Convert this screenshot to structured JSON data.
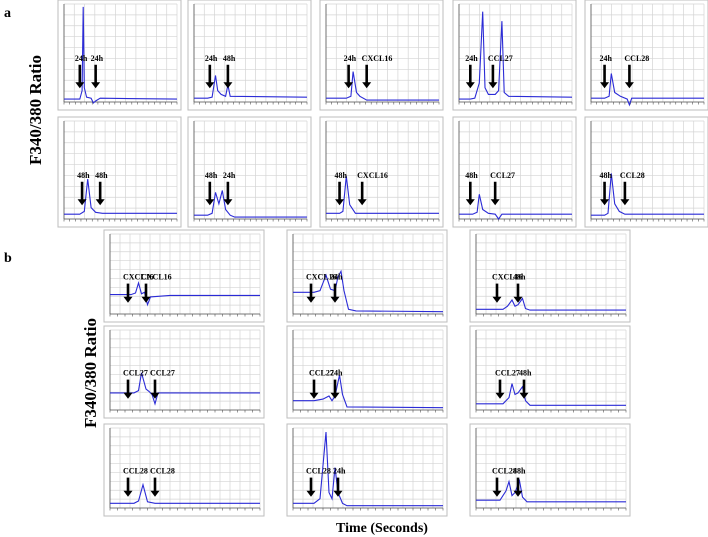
{
  "panel_a_letter": "a",
  "panel_b_letter": "b",
  "ylabel": "F340/380 Ratio",
  "xlabel": "Time (Seconds)",
  "chart_data": {
    "type": "line",
    "ylabel": "F340/380 Ratio",
    "xlabel": "Time (Seconds)",
    "xlim": [
      0,
      100
    ],
    "ylim": [
      0,
      100
    ],
    "grid": true,
    "line_color": "#2b2bd6",
    "panels": [
      {
        "panel": "a",
        "row": 1,
        "col": 1,
        "labels": [
          "24h",
          "24h"
        ],
        "arrows": [
          14,
          28
        ],
        "series": [
          [
            0,
            3
          ],
          [
            10,
            3
          ],
          [
            14,
            3
          ],
          [
            16,
            12
          ],
          [
            17,
            100
          ],
          [
            18,
            15
          ],
          [
            20,
            5
          ],
          [
            24,
            4
          ],
          [
            26,
            -1
          ],
          [
            28,
            1
          ],
          [
            32,
            4
          ],
          [
            100,
            3
          ]
        ]
      },
      {
        "panel": "a",
        "row": 1,
        "col": 2,
        "labels": [
          "24h",
          "48h"
        ],
        "arrows": [
          14,
          30
        ],
        "series": [
          [
            0,
            4
          ],
          [
            12,
            4
          ],
          [
            16,
            5
          ],
          [
            19,
            28
          ],
          [
            21,
            12
          ],
          [
            24,
            8
          ],
          [
            28,
            6
          ],
          [
            30,
            18
          ],
          [
            32,
            6
          ],
          [
            100,
            5
          ]
        ]
      },
      {
        "panel": "a",
        "row": 1,
        "col": 3,
        "labels": [
          "24h",
          "CXCL16"
        ],
        "arrows": [
          20,
          36
        ],
        "series": [
          [
            0,
            4
          ],
          [
            18,
            4
          ],
          [
            22,
            6
          ],
          [
            24,
            32
          ],
          [
            27,
            10
          ],
          [
            30,
            6
          ],
          [
            36,
            2
          ],
          [
            100,
            2
          ]
        ]
      },
      {
        "panel": "a",
        "row": 1,
        "col": 4,
        "labels": [
          "24h",
          "CCL27"
        ],
        "arrows": [
          10,
          30
        ],
        "series": [
          [
            0,
            3
          ],
          [
            10,
            3
          ],
          [
            14,
            4
          ],
          [
            18,
            20
          ],
          [
            21,
            95
          ],
          [
            23,
            15
          ],
          [
            26,
            8
          ],
          [
            32,
            8
          ],
          [
            35,
            12
          ],
          [
            38,
            85
          ],
          [
            40,
            10
          ],
          [
            44,
            6
          ],
          [
            100,
            5
          ]
        ]
      },
      {
        "panel": "a",
        "row": 1,
        "col": 5,
        "labels": [
          "24h",
          "CCL28"
        ],
        "arrows": [
          12,
          34
        ],
        "series": [
          [
            0,
            4
          ],
          [
            12,
            4
          ],
          [
            16,
            6
          ],
          [
            18,
            30
          ],
          [
            21,
            10
          ],
          [
            26,
            6
          ],
          [
            32,
            3
          ],
          [
            34,
            -3
          ],
          [
            36,
            4
          ],
          [
            100,
            4
          ]
        ]
      },
      {
        "panel": "a",
        "row": 2,
        "col": 1,
        "labels": [
          "48h",
          "48h"
        ],
        "arrows": [
          16,
          32
        ],
        "series": [
          [
            0,
            5
          ],
          [
            14,
            5
          ],
          [
            18,
            8
          ],
          [
            21,
            42
          ],
          [
            24,
            12
          ],
          [
            28,
            7
          ],
          [
            34,
            6
          ],
          [
            100,
            6
          ]
        ]
      },
      {
        "panel": "a",
        "row": 2,
        "col": 2,
        "labels": [
          "48h",
          "24h"
        ],
        "arrows": [
          14,
          30
        ],
        "series": [
          [
            0,
            4
          ],
          [
            12,
            4
          ],
          [
            16,
            6
          ],
          [
            19,
            28
          ],
          [
            22,
            16
          ],
          [
            25,
            30
          ],
          [
            28,
            10
          ],
          [
            32,
            4
          ],
          [
            36,
            2
          ],
          [
            100,
            2
          ]
        ]
      },
      {
        "panel": "a",
        "row": 2,
        "col": 3,
        "labels": [
          "48h",
          "CXCL16"
        ],
        "arrows": [
          12,
          32
        ],
        "series": [
          [
            0,
            6
          ],
          [
            12,
            6
          ],
          [
            15,
            8
          ],
          [
            18,
            45
          ],
          [
            21,
            15
          ],
          [
            26,
            6
          ],
          [
            100,
            6
          ]
        ]
      },
      {
        "panel": "a",
        "row": 2,
        "col": 4,
        "labels": [
          "48h",
          "CCL27"
        ],
        "arrows": [
          10,
          32
        ],
        "series": [
          [
            0,
            5
          ],
          [
            12,
            5
          ],
          [
            16,
            7
          ],
          [
            18,
            26
          ],
          [
            21,
            10
          ],
          [
            26,
            6
          ],
          [
            32,
            5
          ],
          [
            35,
            0
          ],
          [
            38,
            5
          ],
          [
            100,
            5
          ]
        ]
      },
      {
        "panel": "a",
        "row": 2,
        "col": 5,
        "labels": [
          "48h",
          "CCL28"
        ],
        "arrows": [
          12,
          30
        ],
        "series": [
          [
            0,
            4
          ],
          [
            12,
            4
          ],
          [
            15,
            6
          ],
          [
            18,
            48
          ],
          [
            21,
            16
          ],
          [
            25,
            8
          ],
          [
            30,
            5
          ],
          [
            100,
            5
          ]
        ]
      },
      {
        "panel": "b",
        "row": 1,
        "col": 1,
        "labels": [
          "CXCL16",
          "CXCL16"
        ],
        "arrows": [
          12,
          24
        ],
        "series": [
          [
            0,
            25
          ],
          [
            14,
            25
          ],
          [
            17,
            27
          ],
          [
            19,
            40
          ],
          [
            21,
            26
          ],
          [
            23,
            28
          ],
          [
            25,
            12
          ],
          [
            27,
            22
          ],
          [
            40,
            24
          ],
          [
            100,
            24
          ]
        ]
      },
      {
        "panel": "b",
        "row": 1,
        "col": 2,
        "labels": [
          "CXCL16",
          "24h"
        ],
        "arrows": [
          12,
          28
        ],
        "series": [
          [
            0,
            28
          ],
          [
            14,
            28
          ],
          [
            18,
            30
          ],
          [
            22,
            50
          ],
          [
            25,
            32
          ],
          [
            28,
            30
          ],
          [
            30,
            48
          ],
          [
            32,
            55
          ],
          [
            34,
            30
          ],
          [
            37,
            6
          ],
          [
            42,
            4
          ],
          [
            100,
            3
          ]
        ]
      },
      {
        "panel": "b",
        "row": 1,
        "col": 3,
        "labels": [
          "CXCL16",
          "48h"
        ],
        "arrows": [
          14,
          28
        ],
        "series": [
          [
            0,
            6
          ],
          [
            18,
            6
          ],
          [
            21,
            10
          ],
          [
            24,
            18
          ],
          [
            26,
            10
          ],
          [
            28,
            12
          ],
          [
            31,
            20
          ],
          [
            33,
            7
          ],
          [
            36,
            5
          ],
          [
            100,
            5
          ]
        ]
      },
      {
        "panel": "b",
        "row": 2,
        "col": 1,
        "labels": [
          "CCL27",
          "CCL27"
        ],
        "arrows": [
          12,
          30
        ],
        "series": [
          [
            0,
            22
          ],
          [
            16,
            22
          ],
          [
            19,
            25
          ],
          [
            21,
            48
          ],
          [
            24,
            27
          ],
          [
            26,
            24
          ],
          [
            28,
            20
          ],
          [
            30,
            8
          ],
          [
            32,
            22
          ],
          [
            100,
            22
          ]
        ]
      },
      {
        "panel": "b",
        "row": 2,
        "col": 2,
        "labels": [
          "CCL27",
          "24h"
        ],
        "arrows": [
          14,
          28
        ],
        "series": [
          [
            0,
            12
          ],
          [
            14,
            12
          ],
          [
            20,
            14
          ],
          [
            24,
            18
          ],
          [
            26,
            12
          ],
          [
            28,
            18
          ],
          [
            31,
            45
          ],
          [
            33,
            20
          ],
          [
            36,
            4
          ],
          [
            100,
            3
          ]
        ]
      },
      {
        "panel": "b",
        "row": 2,
        "col": 3,
        "labels": [
          "CCL27",
          "48h"
        ],
        "arrows": [
          16,
          32
        ],
        "series": [
          [
            0,
            8
          ],
          [
            18,
            8
          ],
          [
            22,
            16
          ],
          [
            24,
            34
          ],
          [
            26,
            20
          ],
          [
            28,
            22
          ],
          [
            31,
            30
          ],
          [
            33,
            12
          ],
          [
            36,
            6
          ],
          [
            100,
            6
          ]
        ]
      },
      {
        "panel": "b",
        "row": 3,
        "col": 1,
        "labels": [
          "CCL28",
          "CCL28"
        ],
        "arrows": [
          12,
          30
        ],
        "series": [
          [
            0,
            6
          ],
          [
            16,
            6
          ],
          [
            19,
            9
          ],
          [
            22,
            30
          ],
          [
            25,
            8
          ],
          [
            30,
            6
          ],
          [
            100,
            6
          ]
        ]
      },
      {
        "panel": "b",
        "row": 3,
        "col": 2,
        "labels": [
          "CCL28",
          "24h"
        ],
        "arrows": [
          12,
          30
        ],
        "series": [
          [
            0,
            6
          ],
          [
            14,
            6
          ],
          [
            18,
            12
          ],
          [
            22,
            98
          ],
          [
            24,
            20
          ],
          [
            26,
            12
          ],
          [
            28,
            52
          ],
          [
            30,
            20
          ],
          [
            33,
            6
          ],
          [
            36,
            3
          ],
          [
            100,
            3
          ]
        ]
      },
      {
        "panel": "b",
        "row": 3,
        "col": 3,
        "labels": [
          "CCL28",
          "48h"
        ],
        "arrows": [
          14,
          28
        ],
        "series": [
          [
            0,
            10
          ],
          [
            16,
            10
          ],
          [
            20,
            22
          ],
          [
            22,
            34
          ],
          [
            24,
            16
          ],
          [
            26,
            20
          ],
          [
            29,
            35
          ],
          [
            31,
            14
          ],
          [
            34,
            8
          ],
          [
            100,
            8
          ]
        ]
      }
    ]
  }
}
